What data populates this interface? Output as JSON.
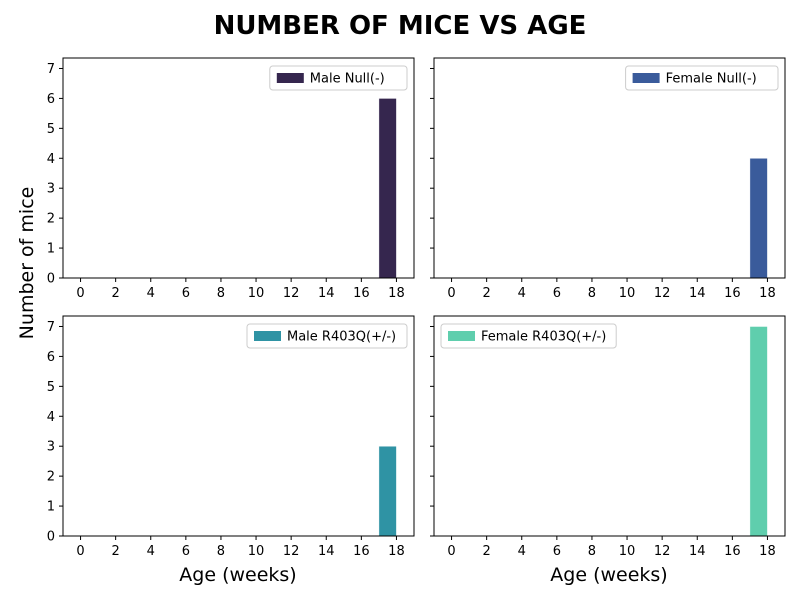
{
  "chart_data": {
    "title": "NUMBER OF MICE VS AGE",
    "xlabel": "Age (weeks)",
    "ylabel": "Number of mice",
    "x_ticks": [
      0,
      2,
      4,
      6,
      8,
      10,
      12,
      14,
      16,
      18
    ],
    "y_ticks": [
      0,
      1,
      2,
      3,
      4,
      5,
      6,
      7
    ],
    "xlim": [
      -1,
      19
    ],
    "ylim": [
      0,
      7.35
    ],
    "bin_width": 1,
    "panels": [
      {
        "type": "bar",
        "legend": "Male Null(-)",
        "legend_position": "top-right",
        "color": "#35264e",
        "bars": [
          {
            "x_start": 17,
            "x_end": 18,
            "value": 6
          }
        ]
      },
      {
        "type": "bar",
        "legend": "Female Null(-)",
        "legend_position": "top-right",
        "color": "#3a5b9b",
        "bars": [
          {
            "x_start": 17,
            "x_end": 18,
            "value": 4
          }
        ]
      },
      {
        "type": "bar",
        "legend": "Male R403Q(+/-)",
        "legend_position": "top-right",
        "color": "#2f93a4",
        "bars": [
          {
            "x_start": 17,
            "x_end": 18,
            "value": 3
          }
        ]
      },
      {
        "type": "bar",
        "legend": "Female R403Q(+/-)",
        "legend_position": "top-left",
        "color": "#5fcead",
        "bars": [
          {
            "x_start": 17,
            "x_end": 18,
            "value": 7
          }
        ]
      }
    ]
  }
}
